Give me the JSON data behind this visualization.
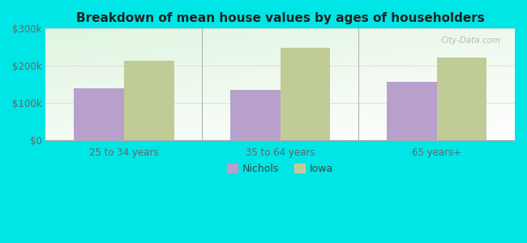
{
  "title": "Breakdown of mean house values by ages of householders",
  "categories": [
    "25 to 34 years",
    "35 to 64 years",
    "65 years+"
  ],
  "nichols_values": [
    140000,
    135000,
    158000
  ],
  "iowa_values": [
    213000,
    248000,
    222000
  ],
  "nichols_color": "#b8a0cc",
  "iowa_color": "#c0cc96",
  "ylim": [
    0,
    300000
  ],
  "yticks": [
    0,
    100000,
    200000,
    300000
  ],
  "ytick_labels": [
    "$0",
    "$100k",
    "$200k",
    "$300k"
  ],
  "outer_bg": "#00e5e5",
  "gradient_top": "#d4edd4",
  "gradient_bottom": "#f8fff8",
  "bar_width": 0.32,
  "legend_nichols": "Nichols",
  "legend_iowa": "Iowa",
  "watermark": "City-Data.com"
}
